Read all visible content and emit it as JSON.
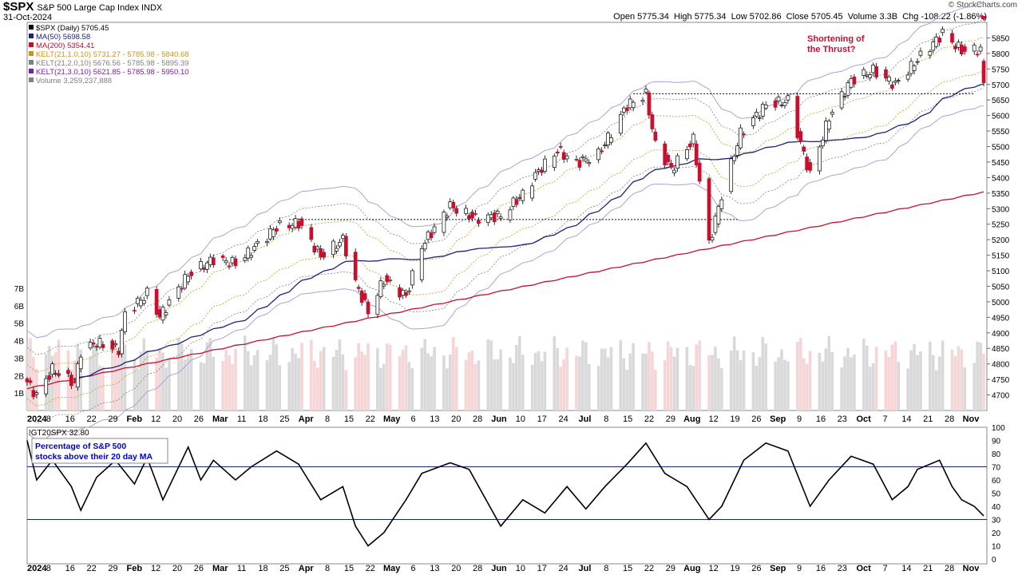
{
  "header": {
    "symbol": "$SPX",
    "name": "S&P 500 Large Cap Index",
    "exchange": "INDX",
    "date": "31-Oct-2024",
    "ohlc": "Open 5775.34  High 5775.34  Low 5702.86  Close 5705.45  Volume 3.3B  Chg -108.22 (-1.86%)",
    "credit": "© StockCharts.com",
    "down_arrow_icon": "down-triangle-icon"
  },
  "legend": [
    {
      "label": "$SPX (Daily) 5705.45",
      "color": "#000000"
    },
    {
      "label": "MA(50) 5698.58",
      "color": "#1a237e"
    },
    {
      "label": "MA(200) 5354.41",
      "color": "#c8102e"
    },
    {
      "label": "KELT(21,1.0,10) 5731.27 - 5785.98 - 5840.68",
      "color": "#c8961e"
    },
    {
      "label": "KELT(21,2.0,10) 5676.56 - 5785.98 - 5895.39",
      "color": "#808080"
    },
    {
      "label": "KELT(21,3.0,10) 5621.85 - 5785.98 - 5950.10",
      "color": "#7b1fa2"
    },
    {
      "label": "Volume 3,259,237,888",
      "color": "#808080"
    }
  ],
  "annotation": {
    "line1": "Shortening of",
    "line2": "the Thrust?",
    "color": "#c8102e"
  },
  "x_axis_labels": [
    "2024",
    "8",
    "16",
    "22",
    "29",
    "Feb",
    "12",
    "20",
    "26",
    "Mar",
    "11",
    "18",
    "25",
    "Apr",
    "8",
    "15",
    "22",
    "May",
    "6",
    "13",
    "20",
    "28",
    "Jun",
    "10",
    "17",
    "24",
    "Jul",
    "8",
    "15",
    "22",
    "29",
    "Aug",
    "12",
    "19",
    "26",
    "Sep",
    "9",
    "16",
    "23",
    "Oct",
    "7",
    "14",
    "21",
    "28",
    "Nov"
  ],
  "bold_x_labels": [
    "2024",
    "Feb",
    "Mar",
    "Apr",
    "May",
    "Jun",
    "Jul",
    "Aug",
    "Sep",
    "Oct",
    "Nov"
  ],
  "lower_panel": {
    "symbol_line": "!GT20SPX 32.80",
    "title_line1": "Percentage of S&P 500",
    "title_line2": "stocks above their 20 day MA",
    "title_color": "#0000cc",
    "levels": [
      70,
      30
    ]
  },
  "colors": {
    "up": "#ffffff",
    "down": "#c8102e",
    "ma50": "#1a237e",
    "ma200": "#c8102e",
    "kelt1": "#c8961e",
    "kelt2": "#808080",
    "kelt3": "#b39ddb",
    "volume": "#d9d9d9"
  },
  "chart_data": [
    {
      "type": "candlestick",
      "title": "$SPX (Daily) 5705.45",
      "ylim": [
        4650,
        5900
      ],
      "y_ticks": [
        4700,
        4750,
        4800,
        4850,
        4900,
        4950,
        5000,
        5050,
        5100,
        5150,
        5200,
        5250,
        5300,
        5350,
        5400,
        5450,
        5500,
        5550,
        5600,
        5650,
        5700,
        5750,
        5800,
        5850
      ],
      "volume_ticks": [
        "1B",
        "2B",
        "3B",
        "4B",
        "5B",
        "6B",
        "7B"
      ],
      "volume_ylim": [
        0,
        7.5
      ],
      "x_range": [
        "2024-01-02",
        "2024-11-01"
      ],
      "close_series": [
        [
          "2024-01-02",
          4742
        ],
        [
          "2024-01-05",
          4697
        ],
        [
          "2024-01-10",
          4783
        ],
        [
          "2024-01-17",
          4739
        ],
        [
          "2024-01-19",
          4840
        ],
        [
          "2024-01-24",
          4868
        ],
        [
          "2024-01-31",
          4846
        ],
        [
          "2024-02-02",
          4959
        ],
        [
          "2024-02-09",
          5026
        ],
        [
          "2024-02-13",
          4953
        ],
        [
          "2024-02-22",
          5087
        ],
        [
          "2024-03-01",
          5137
        ],
        [
          "2024-03-08",
          5124
        ],
        [
          "2024-03-13",
          5165
        ],
        [
          "2024-03-21",
          5241
        ],
        [
          "2024-03-28",
          5254
        ],
        [
          "2024-04-04",
          5147
        ],
        [
          "2024-04-11",
          5200
        ],
        [
          "2024-04-15",
          5061
        ],
        [
          "2024-04-19",
          4967
        ],
        [
          "2024-04-24",
          5071
        ],
        [
          "2024-05-01",
          5018
        ],
        [
          "2024-05-06",
          5180
        ],
        [
          "2024-05-15",
          5308
        ],
        [
          "2024-05-23",
          5268
        ],
        [
          "2024-05-31",
          5277
        ],
        [
          "2024-06-07",
          5346
        ],
        [
          "2024-06-12",
          5421
        ],
        [
          "2024-06-18",
          5487
        ],
        [
          "2024-06-24",
          5447
        ],
        [
          "2024-07-01",
          5475
        ],
        [
          "2024-07-10",
          5633
        ],
        [
          "2024-07-16",
          5667
        ],
        [
          "2024-07-19",
          5505
        ],
        [
          "2024-07-24",
          5427
        ],
        [
          "2024-07-31",
          5522
        ],
        [
          "2024-08-05",
          5186
        ],
        [
          "2024-08-09",
          5344
        ],
        [
          "2024-08-15",
          5543
        ],
        [
          "2024-08-23",
          5634
        ],
        [
          "2024-08-30",
          5648
        ],
        [
          "2024-09-06",
          5408
        ],
        [
          "2024-09-12",
          5595
        ],
        [
          "2024-09-19",
          5713
        ],
        [
          "2024-09-26",
          5745
        ],
        [
          "2024-10-03",
          5699
        ],
        [
          "2024-10-10",
          5780
        ],
        [
          "2024-10-18",
          5864
        ],
        [
          "2024-10-24",
          5809
        ],
        [
          "2024-10-30",
          5813
        ],
        [
          "2024-10-31",
          5705
        ]
      ],
      "reference_levels": [
        5670,
        5265
      ],
      "last_values": {
        "close": 5705.45,
        "ma50": 5698.58,
        "ma200": 5354.41,
        "volume": "3,259,237,888"
      }
    },
    {
      "type": "line",
      "title": "!GT20SPX 32.80",
      "ylim": [
        0,
        100
      ],
      "y_ticks": [
        0,
        10,
        20,
        30,
        40,
        50,
        60,
        70,
        80,
        90,
        100
      ],
      "series": [
        {
          "name": "!GT20SPX",
          "points": [
            [
              "2024-01-02",
              90
            ],
            [
              "2024-01-05",
              60
            ],
            [
              "2024-01-10",
              75
            ],
            [
              "2024-01-16",
              55
            ],
            [
              "2024-01-19",
              37
            ],
            [
              "2024-01-24",
              62
            ],
            [
              "2024-01-30",
              75
            ],
            [
              "2024-02-05",
              57
            ],
            [
              "2024-02-09",
              77
            ],
            [
              "2024-02-14",
              45
            ],
            [
              "2024-02-22",
              85
            ],
            [
              "2024-02-26",
              60
            ],
            [
              "2024-03-01",
              75
            ],
            [
              "2024-03-08",
              60
            ],
            [
              "2024-03-13",
              70
            ],
            [
              "2024-03-21",
              82
            ],
            [
              "2024-03-28",
              72
            ],
            [
              "2024-04-04",
              45
            ],
            [
              "2024-04-11",
              55
            ],
            [
              "2024-04-15",
              25
            ],
            [
              "2024-04-19",
              10
            ],
            [
              "2024-04-24",
              20
            ],
            [
              "2024-05-01",
              45
            ],
            [
              "2024-05-06",
              65
            ],
            [
              "2024-05-15",
              73
            ],
            [
              "2024-05-21",
              68
            ],
            [
              "2024-05-31",
              25
            ],
            [
              "2024-06-07",
              45
            ],
            [
              "2024-06-14",
              35
            ],
            [
              "2024-06-21",
              55
            ],
            [
              "2024-06-27",
              38
            ],
            [
              "2024-07-03",
              55
            ],
            [
              "2024-07-10",
              72
            ],
            [
              "2024-07-16",
              88
            ],
            [
              "2024-07-22",
              65
            ],
            [
              "2024-07-29",
              55
            ],
            [
              "2024-08-05",
              30
            ],
            [
              "2024-08-09",
              40
            ],
            [
              "2024-08-16",
              75
            ],
            [
              "2024-08-23",
              88
            ],
            [
              "2024-08-30",
              82
            ],
            [
              "2024-09-06",
              40
            ],
            [
              "2024-09-12",
              60
            ],
            [
              "2024-09-19",
              78
            ],
            [
              "2024-09-26",
              72
            ],
            [
              "2024-10-02",
              45
            ],
            [
              "2024-10-07",
              55
            ],
            [
              "2024-10-10",
              68
            ],
            [
              "2024-10-17",
              75
            ],
            [
              "2024-10-21",
              55
            ],
            [
              "2024-10-24",
              45
            ],
            [
              "2024-10-28",
              40
            ],
            [
              "2024-10-31",
              32.8
            ]
          ]
        }
      ],
      "reference_levels": [
        70,
        30
      ]
    }
  ]
}
